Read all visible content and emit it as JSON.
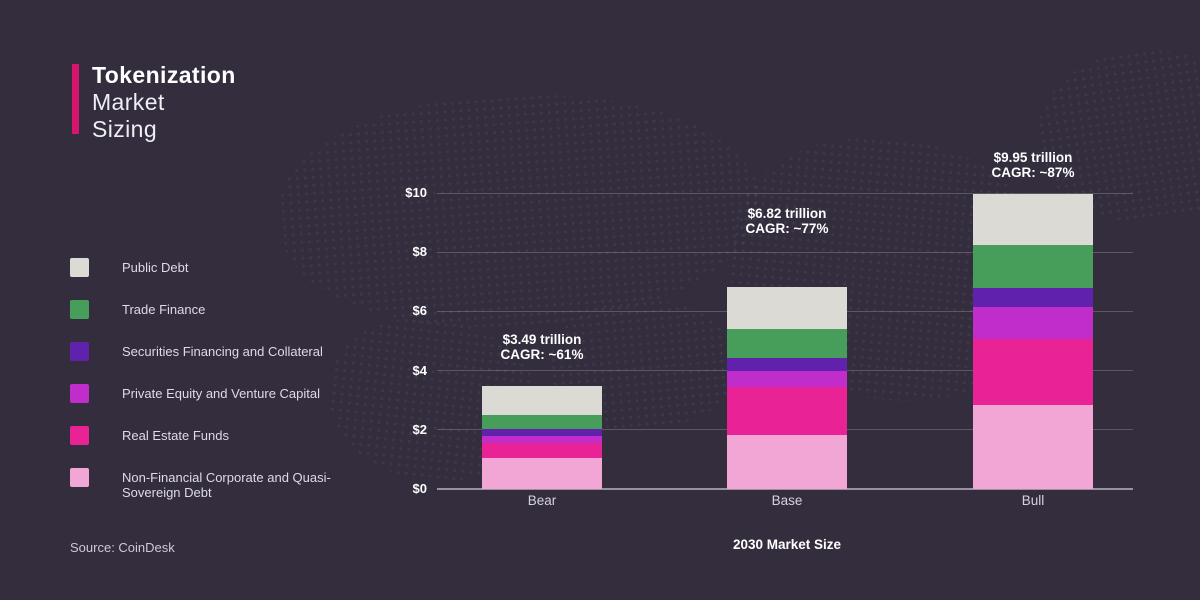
{
  "title": {
    "line1": "Tokenization",
    "line2": "Market",
    "line3": "Sizing"
  },
  "source": "Source: CoinDesk",
  "colors": {
    "background": "#332d3e",
    "accent_bar": "#d6156e",
    "grid": "rgba(255,255,255,0.20)",
    "zero_axis": "#97929f",
    "public_debt": "#dcdad4",
    "trade_finance": "#479e5a",
    "securities_financing": "#6021ad",
    "private_equity_vc": "#c12dcb",
    "real_estate_funds": "#e92296",
    "non_financial_debt": "#f1a6d6"
  },
  "legend": [
    {
      "label": "Public Debt",
      "color": "#dcdad4"
    },
    {
      "label": "Trade Finance",
      "color": "#479e5a"
    },
    {
      "label": "Securities Financing and Collateral",
      "color": "#6021ad"
    },
    {
      "label": "Private Equity and Venture Capital",
      "color": "#c12dcb"
    },
    {
      "label": "Real Estate Funds",
      "color": "#e92296"
    },
    {
      "label": "Non-Financial Corporate and Quasi-Sovereign Debt",
      "color": "#f1a6d6"
    }
  ],
  "chart_data": {
    "type": "bar",
    "stacked": true,
    "title": "Tokenization Market Sizing",
    "xlabel": "2030 Market Size",
    "ylabel": "",
    "ylim": [
      0,
      10
    ],
    "grid": true,
    "legend_position": "left",
    "categories": [
      "Bear",
      "Base",
      "Bull"
    ],
    "series": [
      {
        "name": "Non-Financial Corporate and Quasi-Sovereign Debt",
        "color": "#f1a6d6",
        "values": [
          1.03,
          1.82,
          2.85
        ]
      },
      {
        "name": "Real Estate Funds",
        "color": "#e92296",
        "values": [
          0.52,
          1.64,
          2.22
        ]
      },
      {
        "name": "Private Equity and Venture Capital",
        "color": "#c12dcb",
        "values": [
          0.23,
          0.54,
          1.08
        ]
      },
      {
        "name": "Securities Financing and Collateral",
        "color": "#6021ad",
        "values": [
          0.26,
          0.44,
          0.65
        ]
      },
      {
        "name": "Trade Finance",
        "color": "#479e5a",
        "values": [
          0.45,
          0.97,
          1.43
        ]
      },
      {
        "name": "Public Debt",
        "color": "#dcdad4",
        "values": [
          1.0,
          1.41,
          1.72
        ]
      }
    ],
    "totals": [
      "$3.49 trillion",
      "$6.82 trillion",
      "$9.95 trillion"
    ],
    "cagr": [
      "CAGR: ~61%",
      "CAGR: ~77%",
      "CAGR: ~87%"
    ],
    "y_ticks": [
      {
        "value": 10,
        "label": "$10"
      },
      {
        "value": 8,
        "label": "$8"
      },
      {
        "value": 6,
        "label": "$6"
      },
      {
        "value": 4,
        "label": "$4"
      },
      {
        "value": 2,
        "label": "$2"
      },
      {
        "value": 0,
        "label": "$0"
      }
    ]
  }
}
